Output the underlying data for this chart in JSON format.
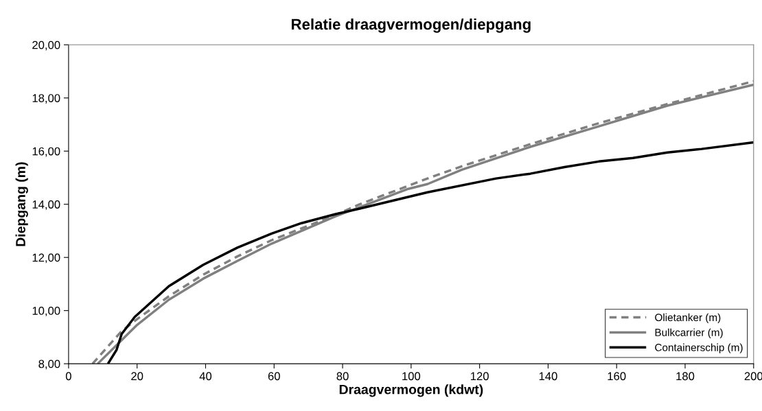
{
  "chart_data": {
    "type": "line",
    "title": "Relatie draagvermogen/diepgang",
    "xlabel": "Draagvermogen (kdwt)",
    "ylabel": "Diepgang (m)",
    "xlim": [
      0,
      200
    ],
    "xticks": [
      0,
      20,
      40,
      60,
      80,
      100,
      120,
      140,
      160,
      180,
      200
    ],
    "ylim": [
      8,
      20
    ],
    "yticks": [
      {
        "value": 8,
        "label": "8,00"
      },
      {
        "value": 10,
        "label": "10,00"
      },
      {
        "value": 12,
        "label": "12,00"
      },
      {
        "value": 14,
        "label": "14,00"
      },
      {
        "value": 16,
        "label": "16,00"
      },
      {
        "value": 18,
        "label": "18,00"
      },
      {
        "value": 20,
        "label": "20,00"
      }
    ],
    "grid": false,
    "legend": "bottom right",
    "marker": "none",
    "series": [
      {
        "name": "Olietanker (m)",
        "color": "#808080",
        "line_style": "dashed",
        "x": [
          7,
          15.3,
          20,
          29.3,
          39.3,
          49.3,
          59.3,
          78,
          84.8,
          104.8,
          114.8,
          134.8,
          154.8,
          174.8,
          200
        ],
        "values": [
          8,
          9.2,
          9.68,
          10.54,
          11.35,
          12.04,
          12.65,
          13.6,
          13.99,
          14.97,
          15.43,
          16.26,
          17.05,
          17.77,
          18.63
        ]
      },
      {
        "name": "Bulkcarrier (m)",
        "color": "#808080",
        "line_style": "solid",
        "x": [
          8.5,
          20,
          29.3,
          39.3,
          49.3,
          59.3,
          78,
          84.8,
          99.2,
          104.8,
          114.8,
          134.8,
          154.8,
          174.8,
          200
        ],
        "values": [
          8,
          9.46,
          10.41,
          11.2,
          11.87,
          12.52,
          13.55,
          13.88,
          14.58,
          14.76,
          15.3,
          16.16,
          16.93,
          17.71,
          18.5
        ]
      },
      {
        "name": "Containerschip (m)",
        "color": "#000000",
        "line_style": "solid",
        "x": [
          11.5,
          14,
          15.5,
          19.3,
          29.3,
          39.3,
          49.3,
          59.3,
          68,
          78,
          84.8,
          104.8,
          124.8,
          134.8,
          144.8,
          154.8,
          164.8,
          174.8,
          184.8,
          200
        ],
        "values": [
          8,
          8.52,
          9.12,
          9.76,
          10.92,
          11.72,
          12.37,
          12.9,
          13.29,
          13.63,
          13.83,
          14.45,
          14.97,
          15.15,
          15.4,
          15.61,
          15.74,
          15.95,
          16.08,
          16.33
        ]
      }
    ]
  }
}
